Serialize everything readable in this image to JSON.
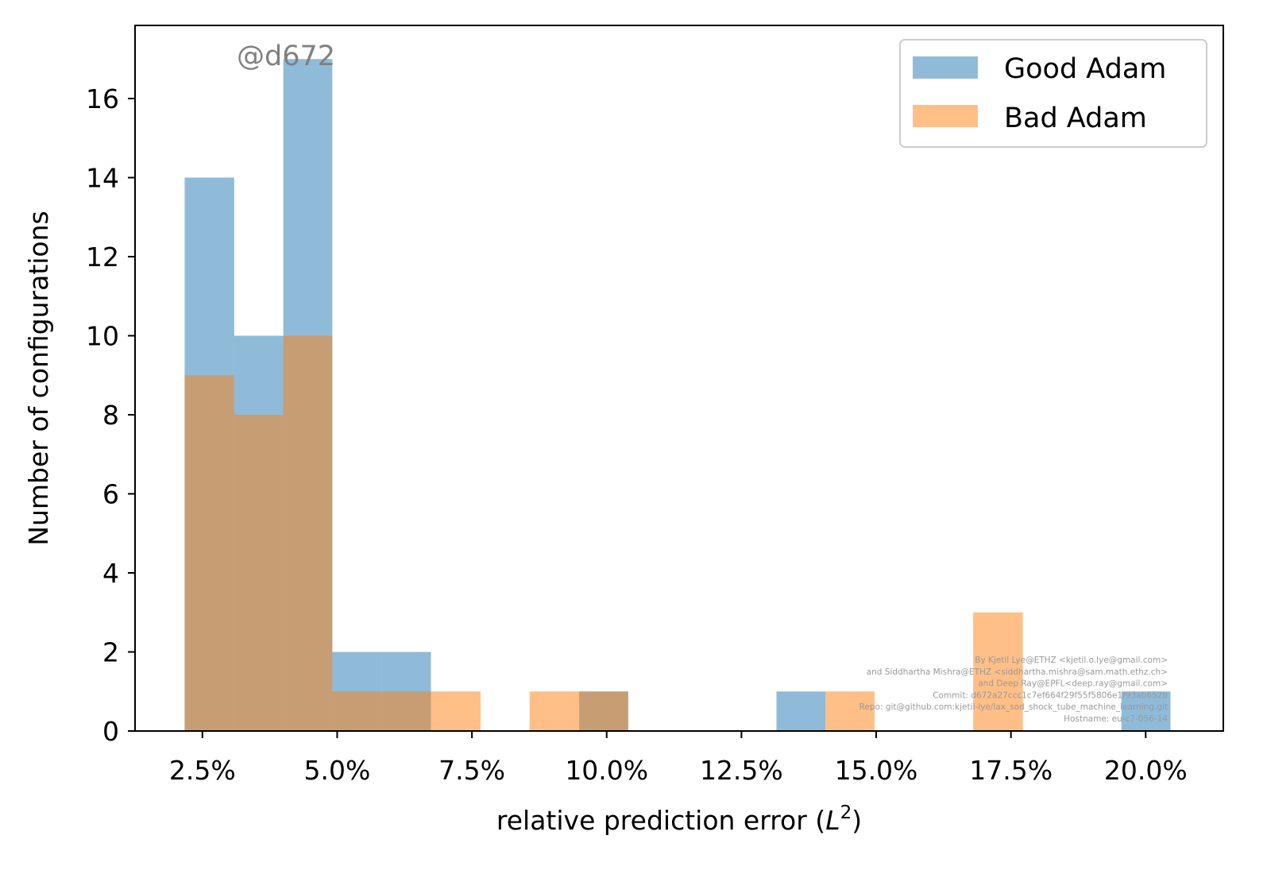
{
  "chart_data": {
    "type": "bar",
    "subtype": "histogram-overlay",
    "title": "",
    "xlabel": "relative prediction error",
    "xlabel_math": "L",
    "xlabel_exponent": "2",
    "ylabel": "Number of configurations",
    "xlim": [
      0.0125,
      0.2144
    ],
    "ylim": [
      0,
      17.85
    ],
    "xticks": [
      0.025,
      0.05,
      0.075,
      0.1,
      0.125,
      0.15,
      0.175,
      0.2
    ],
    "xtick_labels": [
      "2.5%",
      "5.0%",
      "7.5%",
      "10.0%",
      "12.5%",
      "15.0%",
      "17.5%",
      "20.0%"
    ],
    "yticks": [
      0,
      2,
      4,
      6,
      8,
      10,
      12,
      14,
      16
    ],
    "ytick_labels": [
      "0",
      "2",
      "4",
      "6",
      "8",
      "10",
      "12",
      "14",
      "16"
    ],
    "grid": false,
    "legend_position": "top-right",
    "series": [
      {
        "name": "Good Adam",
        "color": "#1f77b4",
        "alpha": 0.5,
        "bins": [
          {
            "x0": 0.0217,
            "x1": 0.0309,
            "count": 14
          },
          {
            "x0": 0.0309,
            "x1": 0.04,
            "count": 10
          },
          {
            "x0": 0.04,
            "x1": 0.0491,
            "count": 17
          },
          {
            "x0": 0.0491,
            "x1": 0.0583,
            "count": 2
          },
          {
            "x0": 0.0583,
            "x1": 0.0674,
            "count": 2
          },
          {
            "x0": 0.0949,
            "x1": 0.104,
            "count": 1
          },
          {
            "x0": 0.1315,
            "x1": 0.1406,
            "count": 1
          },
          {
            "x0": 0.1955,
            "x1": 0.2046,
            "count": 1
          }
        ]
      },
      {
        "name": "Bad Adam",
        "color": "#ff7f0e",
        "alpha": 0.5,
        "bins": [
          {
            "x0": 0.0217,
            "x1": 0.0309,
            "count": 9
          },
          {
            "x0": 0.0309,
            "x1": 0.04,
            "count": 8
          },
          {
            "x0": 0.04,
            "x1": 0.0491,
            "count": 10
          },
          {
            "x0": 0.0491,
            "x1": 0.0583,
            "count": 1
          },
          {
            "x0": 0.0583,
            "x1": 0.0674,
            "count": 1
          },
          {
            "x0": 0.0674,
            "x1": 0.0766,
            "count": 1
          },
          {
            "x0": 0.0857,
            "x1": 0.0949,
            "count": 1
          },
          {
            "x0": 0.0949,
            "x1": 0.104,
            "count": 1
          },
          {
            "x0": 0.1406,
            "x1": 0.1497,
            "count": 1
          },
          {
            "x0": 0.168,
            "x1": 0.1772,
            "count": 3
          }
        ]
      }
    ],
    "annotations": {
      "watermark": "@d672",
      "credits": [
        "By Kjetil Lye@ETHZ <kjetil.o.lye@gmail.com>",
        "and Siddhartha Mishra@ETHZ <siddhartha.mishra@sam.math.ethz.ch>",
        "and Deep Ray@EPFL<deep.ray@gmail.com>",
        "Commit: d672a27ccc1c7ef664f29f55f5806e1f93ab652b",
        "Repo: git@github.com:kjetil-lye/lax_sod_shock_tube_machine_learning.git",
        "Hostname: eu-c7-056-14"
      ]
    }
  }
}
